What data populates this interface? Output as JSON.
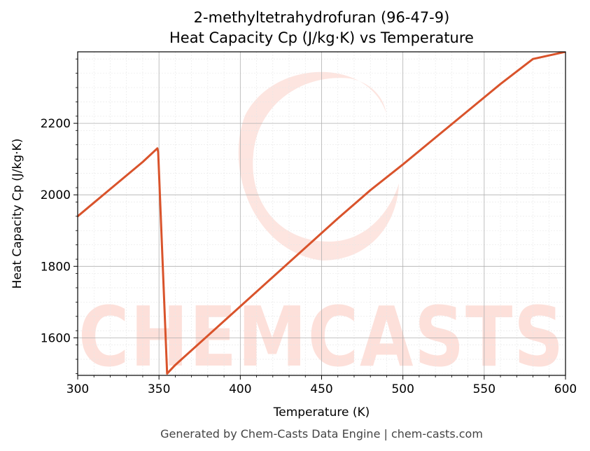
{
  "chart_data": {
    "type": "line",
    "title_line1": "2-methyltetrahydrofuran (96-47-9)",
    "title_line2": "Heat Capacity Cp (J/kg·K) vs Temperature",
    "xlabel": "Temperature (K)",
    "ylabel": "Heat Capacity Cp (J/kg·K)",
    "xlim": [
      300,
      600
    ],
    "ylim": [
      1495,
      2400
    ],
    "xticks": [
      300,
      350,
      400,
      450,
      500,
      550,
      600
    ],
    "yticks": [
      1600,
      1800,
      2000,
      2200
    ],
    "grid": true,
    "series": [
      {
        "color": "#d9532b",
        "x": [
          300,
          310,
          320,
          330,
          340,
          349,
          349.5,
          355,
          360,
          380,
          400,
          420,
          440,
          460,
          480,
          500,
          520,
          540,
          560,
          580,
          600
        ],
        "y": [
          1940,
          1978,
          2016,
          2054,
          2092,
          2130,
          2120,
          1500,
          1524,
          1606,
          1688,
          1770,
          1852,
          1934,
          2013,
          2085,
          2160,
          2235,
          2310,
          2380,
          2400
        ]
      }
    ]
  },
  "watermark": "CHEMCASTS",
  "footer": "Generated by Chem-Casts Data Engine | chem-casts.com"
}
